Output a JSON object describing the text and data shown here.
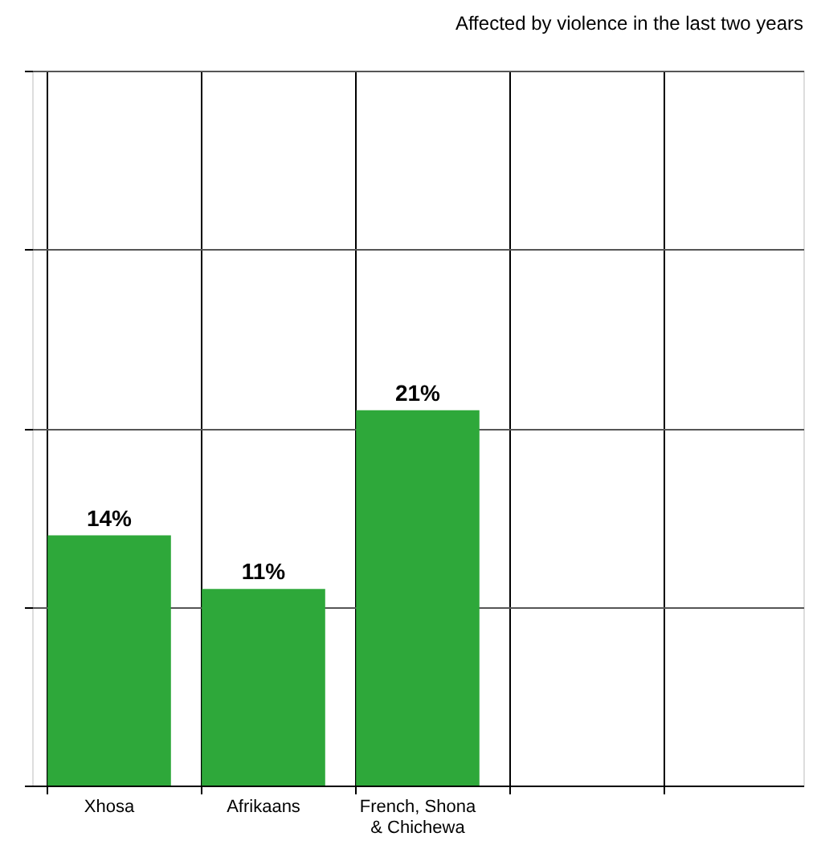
{
  "chart_data": {
    "type": "bar",
    "title": "Affected by violence in the last two years",
    "categories": [
      "Xhosa",
      "Afrikaans",
      "French, Shona\n& Chichewa",
      null,
      null
    ],
    "values": [
      14,
      11,
      21,
      null,
      null
    ],
    "value_labels": [
      "14%",
      "11%",
      "21%",
      null,
      null
    ],
    "color": "#2ea83a",
    "ylim": [
      0,
      40
    ],
    "yticks": [
      {
        "value": 0,
        "label": null
      },
      {
        "value": 10,
        "label": null
      },
      {
        "value": 20,
        "label": null
      },
      {
        "value": 30,
        "label": null
      },
      {
        "value": 40,
        "label": null
      }
    ],
    "tick_labels": "x",
    "grid": true
  }
}
